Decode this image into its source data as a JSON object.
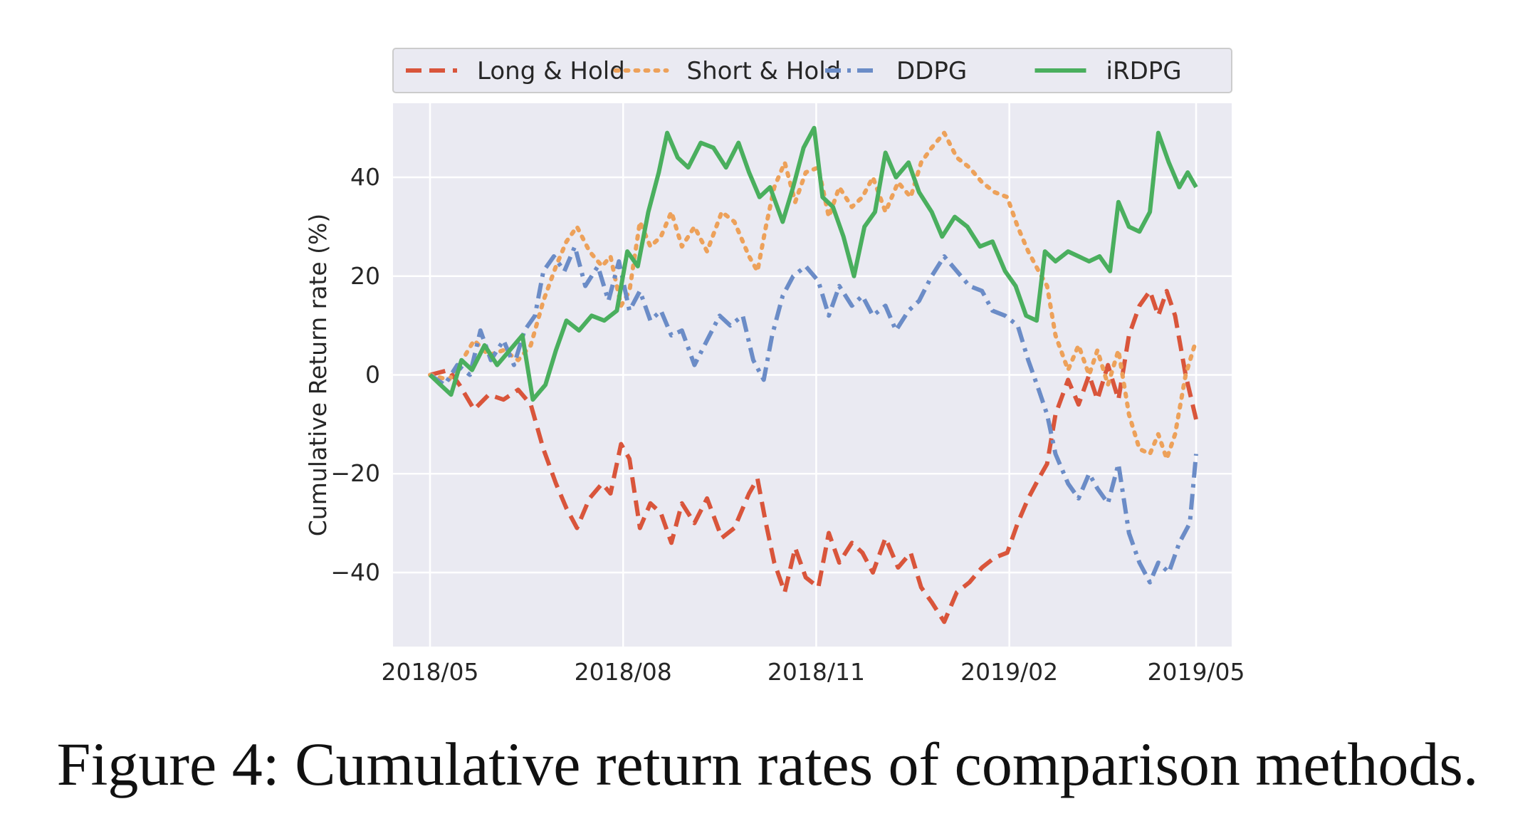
{
  "caption": "Figure 4: Cumulative return rates of comparison methods.",
  "colors": {
    "plot_background": "#EAEAF2",
    "grid": "#FFFFFF",
    "text": "#262626",
    "long_hold": "#D9553B",
    "short_hold": "#EDA15A",
    "ddpg": "#6B8CC7",
    "irdpg": "#4AAF5E"
  },
  "chart_data": {
    "type": "line",
    "xlabel": "",
    "ylabel": "Cumulative Return rate (%)",
    "xlim": [
      "2018-05-01",
      "2019-05-05"
    ],
    "ylim": [
      -55,
      55
    ],
    "yticks": [
      -40,
      -20,
      0,
      20,
      40
    ],
    "ytick_labels": [
      "−40",
      "−20",
      "0",
      "20",
      "40"
    ],
    "xticks": [
      "2018-05-01",
      "2018-08-01",
      "2018-11-01",
      "2019-02-01",
      "2019-05-01"
    ],
    "xtick_labels": [
      "2018/05",
      "2018/08",
      "2018/11",
      "2019/02",
      "2019/05"
    ],
    "grid": true,
    "legend_position": "top (above plot)",
    "series": [
      {
        "name": "Long & Hold",
        "style": "dashed",
        "color_key": "long_hold",
        "points": [
          [
            "2018-05-01",
            0
          ],
          [
            "2018-05-10",
            1
          ],
          [
            "2018-05-15",
            -2
          ],
          [
            "2018-05-22",
            -7
          ],
          [
            "2018-05-29",
            -4
          ],
          [
            "2018-06-05",
            -5
          ],
          [
            "2018-06-12",
            -3
          ],
          [
            "2018-06-18",
            -6
          ],
          [
            "2018-06-24",
            -15
          ],
          [
            "2018-06-30",
            -22
          ],
          [
            "2018-07-05",
            -27
          ],
          [
            "2018-07-10",
            -31
          ],
          [
            "2018-07-16",
            -25
          ],
          [
            "2018-07-22",
            -22
          ],
          [
            "2018-07-26",
            -24
          ],
          [
            "2018-07-31",
            -14
          ],
          [
            "2018-08-04",
            -17
          ],
          [
            "2018-08-09",
            -31
          ],
          [
            "2018-08-14",
            -26
          ],
          [
            "2018-08-19",
            -28
          ],
          [
            "2018-08-24",
            -34
          ],
          [
            "2018-08-29",
            -26
          ],
          [
            "2018-09-04",
            -30
          ],
          [
            "2018-09-10",
            -25
          ],
          [
            "2018-09-17",
            -33
          ],
          [
            "2018-09-23",
            -31
          ],
          [
            "2018-09-30",
            -24
          ],
          [
            "2018-10-04",
            -21
          ],
          [
            "2018-10-08",
            -30
          ],
          [
            "2018-10-12",
            -38
          ],
          [
            "2018-10-17",
            -44
          ],
          [
            "2018-10-22",
            -35
          ],
          [
            "2018-10-27",
            -41
          ],
          [
            "2018-11-02",
            -43
          ],
          [
            "2018-11-07",
            -32
          ],
          [
            "2018-11-12",
            -38
          ],
          [
            "2018-11-18",
            -34
          ],
          [
            "2018-11-23",
            -36
          ],
          [
            "2018-11-28",
            -40
          ],
          [
            "2018-12-04",
            -33
          ],
          [
            "2018-12-10",
            -39
          ],
          [
            "2018-12-16",
            -36
          ],
          [
            "2018-12-21",
            -43
          ],
          [
            "2018-12-26",
            -46
          ],
          [
            "2019-01-01",
            -50
          ],
          [
            "2019-01-07",
            -44
          ],
          [
            "2019-01-13",
            -42
          ],
          [
            "2019-01-19",
            -39
          ],
          [
            "2019-01-25",
            -37
          ],
          [
            "2019-01-31",
            -36
          ],
          [
            "2019-02-05",
            -30
          ],
          [
            "2019-02-10",
            -25
          ],
          [
            "2019-02-15",
            -21
          ],
          [
            "2019-02-19",
            -18
          ],
          [
            "2019-02-23",
            -8
          ],
          [
            "2019-03-01",
            -1
          ],
          [
            "2019-03-06",
            -6
          ],
          [
            "2019-03-11",
            0
          ],
          [
            "2019-03-15",
            -5
          ],
          [
            "2019-03-20",
            2
          ],
          [
            "2019-03-25",
            -5
          ],
          [
            "2019-03-30",
            8
          ],
          [
            "2019-04-04",
            14
          ],
          [
            "2019-04-09",
            17
          ],
          [
            "2019-04-13",
            12
          ],
          [
            "2019-04-17",
            17
          ],
          [
            "2019-04-21",
            12
          ],
          [
            "2019-04-26",
            0
          ],
          [
            "2019-05-01",
            -9
          ]
        ]
      },
      {
        "name": "Short & Hold",
        "style": "dotted",
        "color_key": "short_hold",
        "points": [
          [
            "2018-05-01",
            0
          ],
          [
            "2018-05-10",
            -1
          ],
          [
            "2018-05-15",
            2
          ],
          [
            "2018-05-22",
            7
          ],
          [
            "2018-05-29",
            4
          ],
          [
            "2018-06-05",
            5
          ],
          [
            "2018-06-12",
            3
          ],
          [
            "2018-06-18",
            6
          ],
          [
            "2018-06-24",
            15
          ],
          [
            "2018-06-30",
            22
          ],
          [
            "2018-07-05",
            27
          ],
          [
            "2018-07-10",
            30
          ],
          [
            "2018-07-16",
            25
          ],
          [
            "2018-07-22",
            22
          ],
          [
            "2018-07-26",
            24
          ],
          [
            "2018-07-31",
            14
          ],
          [
            "2018-08-04",
            17
          ],
          [
            "2018-08-09",
            31
          ],
          [
            "2018-08-14",
            26
          ],
          [
            "2018-08-19",
            28
          ],
          [
            "2018-08-24",
            33
          ],
          [
            "2018-08-29",
            26
          ],
          [
            "2018-09-04",
            30
          ],
          [
            "2018-09-10",
            25
          ],
          [
            "2018-09-17",
            33
          ],
          [
            "2018-09-23",
            31
          ],
          [
            "2018-09-30",
            24
          ],
          [
            "2018-10-04",
            21
          ],
          [
            "2018-10-08",
            30
          ],
          [
            "2018-10-12",
            38
          ],
          [
            "2018-10-17",
            43
          ],
          [
            "2018-10-22",
            35
          ],
          [
            "2018-10-27",
            41
          ],
          [
            "2018-11-02",
            42
          ],
          [
            "2018-11-07",
            32
          ],
          [
            "2018-11-12",
            38
          ],
          [
            "2018-11-18",
            34
          ],
          [
            "2018-11-23",
            36
          ],
          [
            "2018-11-28",
            40
          ],
          [
            "2018-12-04",
            33
          ],
          [
            "2018-12-10",
            39
          ],
          [
            "2018-12-16",
            36
          ],
          [
            "2018-12-21",
            43
          ],
          [
            "2018-12-26",
            46
          ],
          [
            "2019-01-01",
            49
          ],
          [
            "2019-01-07",
            44
          ],
          [
            "2019-01-13",
            42
          ],
          [
            "2019-01-19",
            39
          ],
          [
            "2019-01-25",
            37
          ],
          [
            "2019-01-31",
            36
          ],
          [
            "2019-02-05",
            30
          ],
          [
            "2019-02-10",
            25
          ],
          [
            "2019-02-15",
            21
          ],
          [
            "2019-02-19",
            18
          ],
          [
            "2019-02-23",
            8
          ],
          [
            "2019-03-01",
            1
          ],
          [
            "2019-03-06",
            6
          ],
          [
            "2019-03-11",
            0
          ],
          [
            "2019-03-15",
            5
          ],
          [
            "2019-03-20",
            -2
          ],
          [
            "2019-03-25",
            5
          ],
          [
            "2019-03-30",
            -8
          ],
          [
            "2019-04-04",
            -15
          ],
          [
            "2019-04-09",
            -16
          ],
          [
            "2019-04-13",
            -12
          ],
          [
            "2019-04-17",
            -17
          ],
          [
            "2019-04-21",
            -12
          ],
          [
            "2019-04-26",
            0
          ],
          [
            "2019-05-01",
            7
          ]
        ]
      },
      {
        "name": "DDPG",
        "style": "dashdot",
        "color_key": "ddpg",
        "points": [
          [
            "2018-05-01",
            0
          ],
          [
            "2018-05-08",
            -2
          ],
          [
            "2018-05-14",
            2
          ],
          [
            "2018-05-20",
            0
          ],
          [
            "2018-05-25",
            9
          ],
          [
            "2018-05-30",
            3
          ],
          [
            "2018-06-05",
            7
          ],
          [
            "2018-06-10",
            2
          ],
          [
            "2018-06-15",
            9
          ],
          [
            "2018-06-20",
            12
          ],
          [
            "2018-06-24",
            21
          ],
          [
            "2018-06-29",
            24
          ],
          [
            "2018-07-04",
            21
          ],
          [
            "2018-07-09",
            26
          ],
          [
            "2018-07-14",
            18
          ],
          [
            "2018-07-20",
            22
          ],
          [
            "2018-07-25",
            15
          ],
          [
            "2018-07-30",
            23
          ],
          [
            "2018-08-04",
            13
          ],
          [
            "2018-08-09",
            17
          ],
          [
            "2018-08-14",
            11
          ],
          [
            "2018-08-19",
            13
          ],
          [
            "2018-08-24",
            8
          ],
          [
            "2018-08-29",
            9
          ],
          [
            "2018-09-04",
            2
          ],
          [
            "2018-09-10",
            7
          ],
          [
            "2018-09-16",
            12
          ],
          [
            "2018-09-21",
            10
          ],
          [
            "2018-09-27",
            12
          ],
          [
            "2018-10-02",
            3
          ],
          [
            "2018-10-07",
            -1
          ],
          [
            "2018-10-11",
            8
          ],
          [
            "2018-10-16",
            16
          ],
          [
            "2018-10-21",
            20
          ],
          [
            "2018-10-27",
            22
          ],
          [
            "2018-11-02",
            19
          ],
          [
            "2018-11-07",
            12
          ],
          [
            "2018-11-12",
            18
          ],
          [
            "2018-11-18",
            14
          ],
          [
            "2018-11-23",
            16
          ],
          [
            "2018-11-28",
            12
          ],
          [
            "2018-12-04",
            14
          ],
          [
            "2018-12-09",
            9
          ],
          [
            "2018-12-15",
            13
          ],
          [
            "2018-12-20",
            15
          ],
          [
            "2018-12-26",
            20
          ],
          [
            "2019-01-01",
            24
          ],
          [
            "2019-01-07",
            21
          ],
          [
            "2019-01-13",
            18
          ],
          [
            "2019-01-19",
            17
          ],
          [
            "2019-01-24",
            13
          ],
          [
            "2019-01-30",
            12
          ],
          [
            "2019-02-05",
            10
          ],
          [
            "2019-02-10",
            3
          ],
          [
            "2019-02-15",
            -3
          ],
          [
            "2019-02-19",
            -8
          ],
          [
            "2019-02-23",
            -16
          ],
          [
            "2019-03-01",
            -22
          ],
          [
            "2019-03-06",
            -25
          ],
          [
            "2019-03-11",
            -20
          ],
          [
            "2019-03-15",
            -23
          ],
          [
            "2019-03-20",
            -26
          ],
          [
            "2019-03-25",
            -18
          ],
          [
            "2019-03-30",
            -32
          ],
          [
            "2019-04-04",
            -38
          ],
          [
            "2019-04-09",
            -42
          ],
          [
            "2019-04-13",
            -38
          ],
          [
            "2019-04-18",
            -40
          ],
          [
            "2019-04-23",
            -34
          ],
          [
            "2019-04-28",
            -30
          ],
          [
            "2019-05-01",
            -16
          ]
        ]
      },
      {
        "name": "iRDPG",
        "style": "solid",
        "color_key": "irdpg",
        "points": [
          [
            "2018-05-01",
            0
          ],
          [
            "2018-05-06",
            -2
          ],
          [
            "2018-05-11",
            -4
          ],
          [
            "2018-05-16",
            3
          ],
          [
            "2018-05-21",
            1
          ],
          [
            "2018-05-27",
            6
          ],
          [
            "2018-06-02",
            2
          ],
          [
            "2018-06-08",
            5
          ],
          [
            "2018-06-14",
            8
          ],
          [
            "2018-06-19",
            -5
          ],
          [
            "2018-06-25",
            -2
          ],
          [
            "2018-06-30",
            5
          ],
          [
            "2018-07-05",
            11
          ],
          [
            "2018-07-11",
            9
          ],
          [
            "2018-07-17",
            12
          ],
          [
            "2018-07-23",
            11
          ],
          [
            "2018-07-29",
            13
          ],
          [
            "2018-08-03",
            25
          ],
          [
            "2018-08-08",
            22
          ],
          [
            "2018-08-13",
            33
          ],
          [
            "2018-08-18",
            41
          ],
          [
            "2018-08-22",
            49
          ],
          [
            "2018-08-27",
            44
          ],
          [
            "2018-09-01",
            42
          ],
          [
            "2018-09-07",
            47
          ],
          [
            "2018-09-13",
            46
          ],
          [
            "2018-09-19",
            42
          ],
          [
            "2018-09-25",
            47
          ],
          [
            "2018-09-30",
            41
          ],
          [
            "2018-10-05",
            36
          ],
          [
            "2018-10-10",
            38
          ],
          [
            "2018-10-16",
            31
          ],
          [
            "2018-10-21",
            38
          ],
          [
            "2018-10-26",
            46
          ],
          [
            "2018-10-31",
            50
          ],
          [
            "2018-11-04",
            36
          ],
          [
            "2018-11-09",
            34
          ],
          [
            "2018-11-14",
            28
          ],
          [
            "2018-11-19",
            20
          ],
          [
            "2018-11-24",
            30
          ],
          [
            "2018-11-29",
            33
          ],
          [
            "2018-12-04",
            45
          ],
          [
            "2018-12-09",
            40
          ],
          [
            "2018-12-15",
            43
          ],
          [
            "2018-12-20",
            37
          ],
          [
            "2018-12-26",
            33
          ],
          [
            "2018-12-31",
            28
          ],
          [
            "2019-01-06",
            32
          ],
          [
            "2019-01-12",
            30
          ],
          [
            "2019-01-18",
            26
          ],
          [
            "2019-01-24",
            27
          ],
          [
            "2019-01-30",
            21
          ],
          [
            "2019-02-04",
            18
          ],
          [
            "2019-02-09",
            12
          ],
          [
            "2019-02-14",
            11
          ],
          [
            "2019-02-18",
            25
          ],
          [
            "2019-02-23",
            23
          ],
          [
            "2019-03-01",
            25
          ],
          [
            "2019-03-06",
            24
          ],
          [
            "2019-03-11",
            23
          ],
          [
            "2019-03-16",
            24
          ],
          [
            "2019-03-21",
            21
          ],
          [
            "2019-03-25",
            35
          ],
          [
            "2019-03-30",
            30
          ],
          [
            "2019-04-04",
            29
          ],
          [
            "2019-04-09",
            33
          ],
          [
            "2019-04-13",
            49
          ],
          [
            "2019-04-18",
            43
          ],
          [
            "2019-04-23",
            38
          ],
          [
            "2019-04-27",
            41
          ],
          [
            "2019-05-01",
            38
          ]
        ]
      }
    ]
  }
}
